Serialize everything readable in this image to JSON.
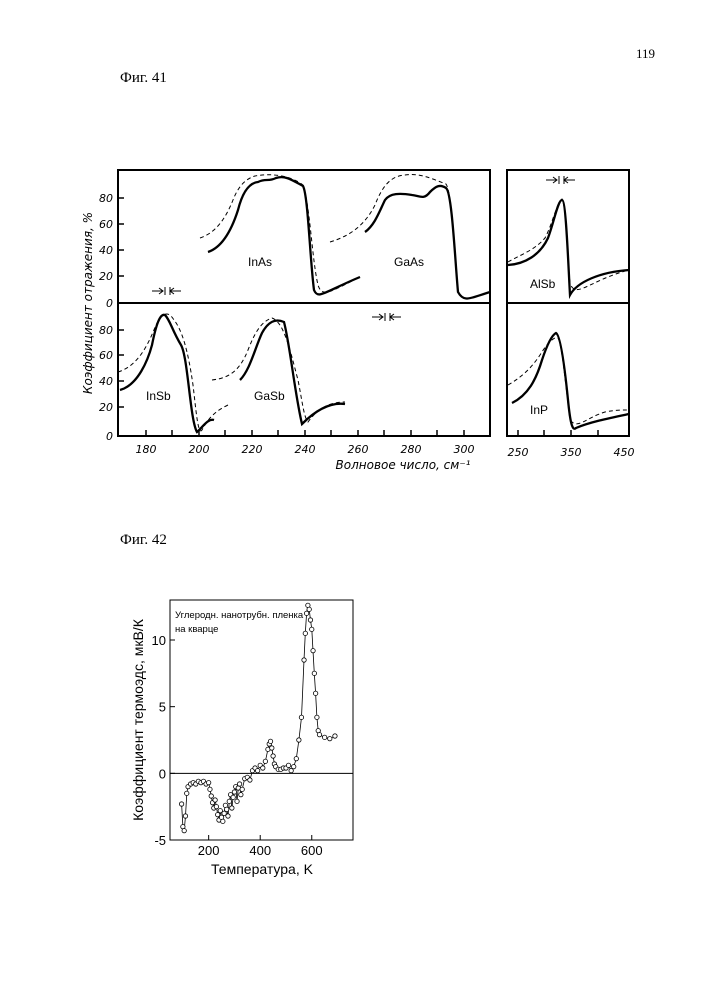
{
  "page_number": "119",
  "fig41": {
    "caption": "Фиг. 41",
    "y_label": "Коэффициент отражения, %",
    "x_label": "Волновое число, см⁻¹",
    "y_ticks_top": [
      "80",
      "60",
      "40",
      "20",
      "0"
    ],
    "y_ticks_bottom": [
      "80",
      "60",
      "40",
      "20",
      "0"
    ],
    "x_ticks_main": [
      "180",
      "200",
      "220",
      "240",
      "260",
      "280",
      "300"
    ],
    "x_ticks_right": [
      "250",
      "350",
      "450"
    ],
    "materials": {
      "inas": "InAs",
      "gaas": "GaAs",
      "alsb": "AlSb",
      "insb": "InSb",
      "gasb": "GaSb",
      "inp": "InP"
    }
  },
  "fig42": {
    "caption": "Фиг. 42",
    "chart_data": {
      "type": "scatter",
      "annotation": "Углеродн. нанотрубн. пленка на кварце",
      "annotation_line1": "Углеродн. нанотрубн. пленка",
      "annotation_line2": "на кварце",
      "xlabel": "Температура, K",
      "ylabel": "Коэффициент термоэдс, мкВ/К",
      "xlim": [
        50,
        760
      ],
      "ylim": [
        -5,
        13
      ],
      "x_ticks": [
        200,
        400,
        600
      ],
      "y_ticks": [
        -5,
        0,
        5,
        10
      ],
      "x_tick_labels": [
        "200",
        "400",
        "600"
      ],
      "y_tick_labels": [
        "-5",
        "0",
        "5",
        "10"
      ],
      "x": [
        95,
        100,
        105,
        110,
        115,
        120,
        130,
        140,
        150,
        160,
        170,
        180,
        190,
        200,
        205,
        210,
        215,
        220,
        225,
        230,
        235,
        240,
        245,
        250,
        255,
        260,
        265,
        270,
        275,
        280,
        285,
        290,
        295,
        300,
        305,
        310,
        315,
        320,
        325,
        330,
        340,
        350,
        360,
        370,
        380,
        390,
        400,
        410,
        420,
        430,
        435,
        440,
        445,
        450,
        455,
        460,
        470,
        480,
        490,
        500,
        510,
        520,
        530,
        540,
        550,
        560,
        570,
        575,
        580,
        585,
        590,
        595,
        600,
        605,
        610,
        615,
        620,
        625,
        630,
        650,
        670,
        690
      ],
      "y": [
        -2.3,
        -4.0,
        -4.3,
        -3.2,
        -1.5,
        -1.0,
        -0.8,
        -0.7,
        -0.8,
        -0.6,
        -0.7,
        -0.6,
        -0.8,
        -0.7,
        -1.2,
        -1.7,
        -2.2,
        -2.6,
        -2.0,
        -2.5,
        -3.1,
        -3.5,
        -2.8,
        -3.3,
        -3.6,
        -3.0,
        -2.4,
        -2.7,
        -3.2,
        -2.1,
        -1.6,
        -2.6,
        -1.8,
        -1.4,
        -1.0,
        -2.1,
        -1.1,
        -0.8,
        -1.6,
        -1.2,
        -0.4,
        -0.3,
        -0.5,
        0.2,
        0.4,
        0.2,
        0.6,
        0.4,
        0.9,
        1.8,
        2.2,
        2.4,
        1.9,
        1.3,
        0.7,
        0.5,
        0.3,
        0.3,
        0.4,
        0.4,
        0.6,
        0.2,
        0.5,
        1.1,
        2.5,
        4.2,
        8.5,
        10.5,
        12.0,
        12.6,
        12.3,
        11.5,
        10.8,
        9.2,
        7.5,
        6.0,
        4.2,
        3.2,
        2.9,
        2.7,
        2.6,
        2.8
      ]
    }
  }
}
